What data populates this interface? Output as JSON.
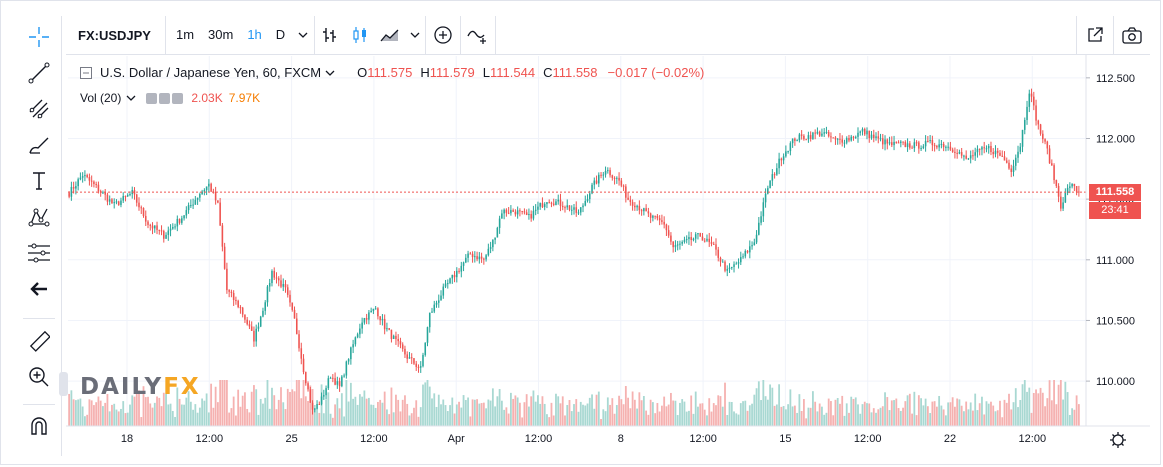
{
  "toolbar": {
    "symbol": "FX:USDJPY",
    "intervals": [
      "1m",
      "30m",
      "1h",
      "D"
    ],
    "active_interval": "1h",
    "icons": [
      "bar-style-icon",
      "candles-icon",
      "area-style-icon",
      "chevron-down-icon",
      "add-compare-icon",
      "indicators-icon",
      "fullscreen-icon",
      "snapshot-camera-icon"
    ]
  },
  "left_tools": [
    "crosshair-icon",
    "trend-line-icon",
    "fib-icon",
    "brush-icon",
    "text-icon",
    "pattern-icon",
    "measure-icon",
    "back-arrow-icon",
    "ruler-icon",
    "zoom-in-icon",
    "magnet-icon"
  ],
  "legend": {
    "title": "U.S. Dollar / Japanese Yen, 60, FXCM",
    "o_label": "O",
    "o": "111.575",
    "h_label": "H",
    "h": "111.579",
    "l_label": "L",
    "l": "111.544",
    "c_label": "C",
    "c": "111.558",
    "change": "−0.017 (−0.02%)",
    "vol_label": "Vol (20)",
    "vol1": "2.03K",
    "vol2": "7.97K"
  },
  "price_tag": {
    "price": "111.558",
    "countdown": "23:41"
  },
  "watermark": {
    "part1": "DAILY",
    "part2": "FX"
  },
  "colors": {
    "up": "#26a69a",
    "down": "#ef5350",
    "vol_up": "#a8d8d2",
    "vol_down": "#f5b1b0",
    "grid": "#f0f3fa",
    "axis_text": "#131722"
  },
  "chart_data": {
    "type": "candlestick",
    "symbol": "FX:USDJPY",
    "interval": "60",
    "y_ticks": [
      112.5,
      112.0,
      111.5,
      111.0,
      110.5,
      110.0
    ],
    "y_tick_labels": [
      "112.500",
      "112.000",
      "111.500",
      "111.000",
      "110.500",
      "110.000"
    ],
    "ylim": [
      109.63,
      112.68
    ],
    "x_tick_labels": [
      "18",
      "12:00",
      "25",
      "12:00",
      "Apr",
      "12:00",
      "8",
      "12:00",
      "15",
      "12:00",
      "22",
      "12:00"
    ],
    "last_price": 111.558,
    "close_path": [
      [
        0,
        111.55
      ],
      [
        6,
        111.7
      ],
      [
        12,
        111.6
      ],
      [
        20,
        111.45
      ],
      [
        28,
        111.55
      ],
      [
        35,
        111.3
      ],
      [
        42,
        111.2
      ],
      [
        50,
        111.35
      ],
      [
        58,
        111.55
      ],
      [
        62,
        111.62
      ],
      [
        66,
        111.45
      ],
      [
        70,
        110.75
      ],
      [
        76,
        110.6
      ],
      [
        82,
        110.35
      ],
      [
        86,
        110.6
      ],
      [
        90,
        110.9
      ],
      [
        96,
        110.75
      ],
      [
        100,
        110.5
      ],
      [
        104,
        110.1
      ],
      [
        108,
        109.75
      ],
      [
        112,
        109.85
      ],
      [
        116,
        110.05
      ],
      [
        120,
        109.95
      ],
      [
        124,
        110.2
      ],
      [
        130,
        110.5
      ],
      [
        136,
        110.6
      ],
      [
        140,
        110.45
      ],
      [
        146,
        110.3
      ],
      [
        150,
        110.2
      ],
      [
        156,
        110.1
      ],
      [
        160,
        110.55
      ],
      [
        166,
        110.75
      ],
      [
        172,
        110.9
      ],
      [
        178,
        111.05
      ],
      [
        184,
        111.0
      ],
      [
        188,
        111.15
      ],
      [
        192,
        111.4
      ],
      [
        198,
        111.4
      ],
      [
        204,
        111.35
      ],
      [
        212,
        111.5
      ],
      [
        220,
        111.45
      ],
      [
        226,
        111.38
      ],
      [
        232,
        111.6
      ],
      [
        238,
        111.75
      ],
      [
        244,
        111.65
      ],
      [
        248,
        111.5
      ],
      [
        252,
        111.45
      ],
      [
        258,
        111.35
      ],
      [
        264,
        111.3
      ],
      [
        268,
        111.1
      ],
      [
        274,
        111.15
      ],
      [
        280,
        111.2
      ],
      [
        286,
        111.1
      ],
      [
        292,
        110.9
      ],
      [
        298,
        111.0
      ],
      [
        304,
        111.15
      ],
      [
        310,
        111.6
      ],
      [
        316,
        111.85
      ],
      [
        322,
        112.0
      ],
      [
        328,
        112.02
      ],
      [
        334,
        112.05
      ],
      [
        340,
        111.98
      ],
      [
        346,
        112.0
      ],
      [
        352,
        112.06
      ],
      [
        358,
        112.0
      ],
      [
        364,
        111.95
      ],
      [
        370,
        111.95
      ],
      [
        376,
        111.94
      ],
      [
        382,
        111.96
      ],
      [
        388,
        111.95
      ],
      [
        394,
        111.9
      ],
      [
        398,
        111.82
      ],
      [
        402,
        111.88
      ],
      [
        408,
        111.92
      ],
      [
        414,
        111.85
      ],
      [
        418,
        111.75
      ],
      [
        422,
        111.95
      ],
      [
        426,
        112.4
      ],
      [
        430,
        112.1
      ],
      [
        434,
        111.9
      ],
      [
        438,
        111.6
      ],
      [
        440,
        111.45
      ],
      [
        444,
        111.62
      ],
      [
        448,
        111.558
      ]
    ],
    "volume_range": [
      0,
      4.0
    ]
  }
}
